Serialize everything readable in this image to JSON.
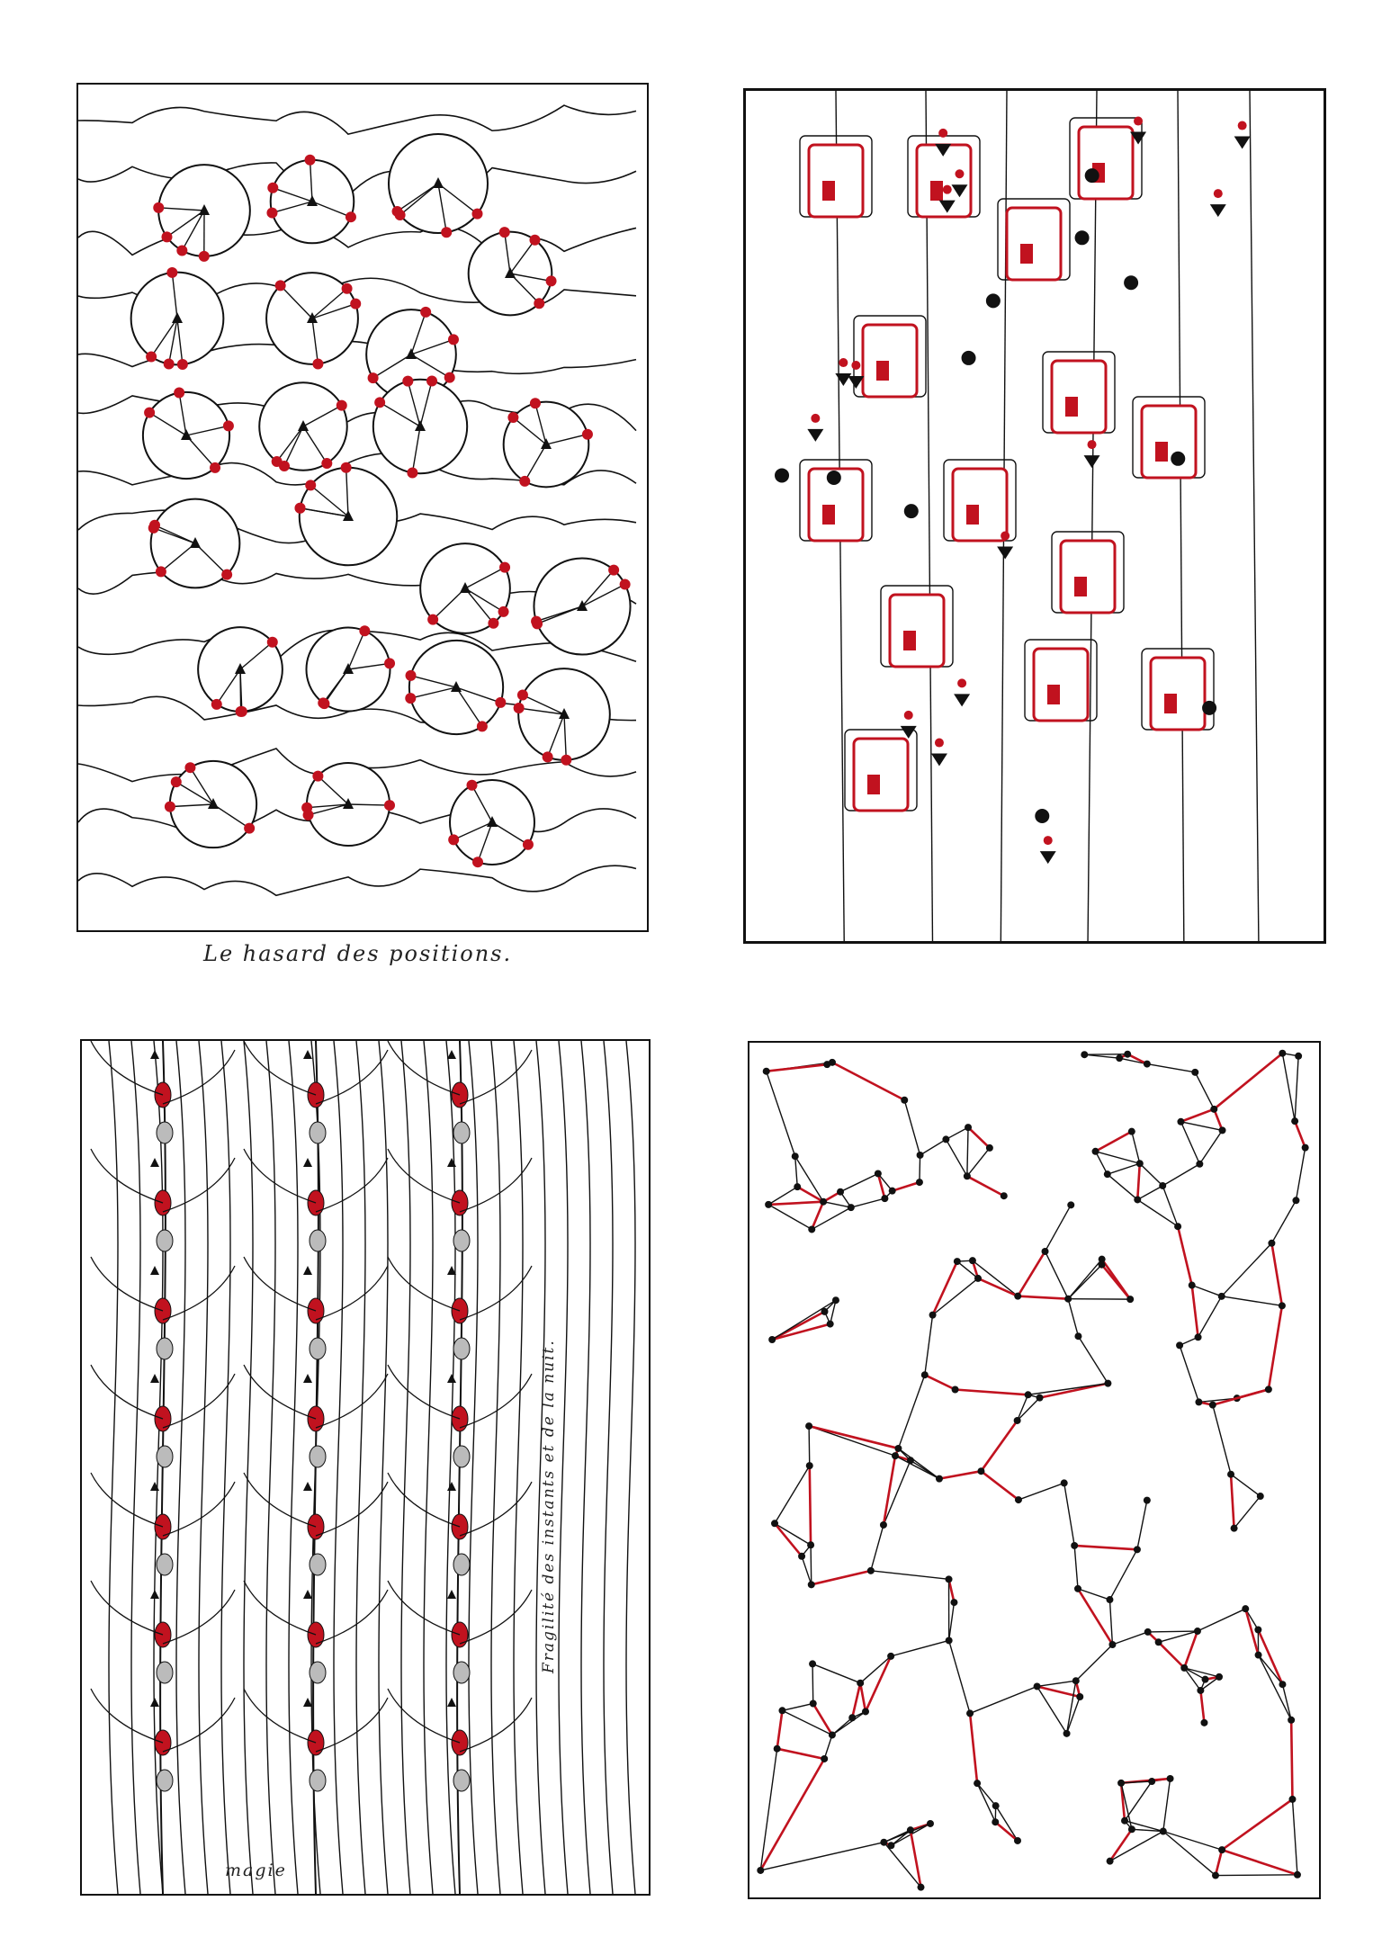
{
  "captions": {
    "top_left": "Le hasard des positions.",
    "bottom_left_name": "magie",
    "bottom_left_vertical": "Fragilité des instants et de la nuit."
  },
  "colors": {
    "ink": "#111111",
    "accent_red": "#c1121f",
    "paper": "#ffffff"
  },
  "panels": [
    {
      "name": "panel-flowers",
      "motif": "red-dot-flowers"
    },
    {
      "name": "panel-circuits",
      "motif": "red-boxes-black-beads"
    },
    {
      "name": "panel-stems",
      "motif": "drooping-stems-red-buds"
    },
    {
      "name": "panel-cracks",
      "motif": "red-black-crackle-network"
    }
  ]
}
